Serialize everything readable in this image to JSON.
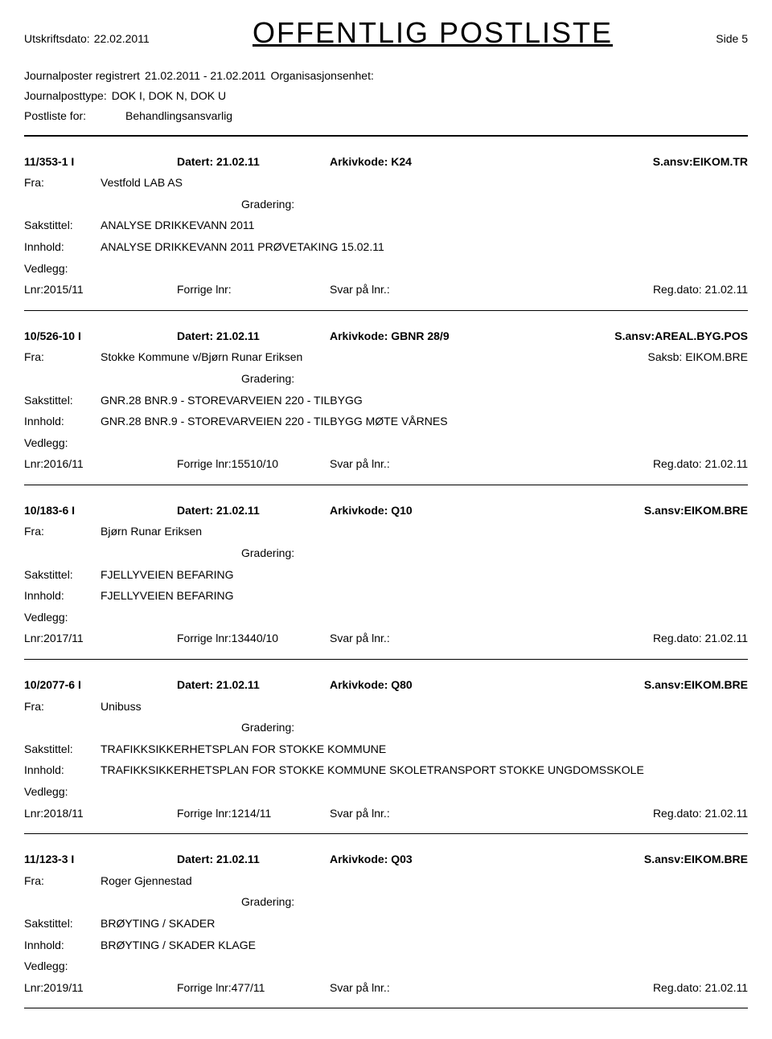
{
  "header": {
    "utskriftsdato_label": "Utskriftsdato:",
    "utskriftsdato_value": "22.02.2011",
    "main_title": "OFFENTLIG POSTLISTE",
    "side_label": "Side 5"
  },
  "subheader": {
    "line1_label": "Journalposter registrert",
    "line1_dates": "21.02.2011 - 21.02.2011",
    "line1_org": "Organisasjonsenhet:",
    "line2_label": "Journalposttype:",
    "line2_value": "DOK I, DOK N, DOK U",
    "line3_label": "Postliste for:",
    "line3_value": "Behandlingsansvarlig"
  },
  "labels": {
    "datert": "Datert:",
    "arkivkode": "Arkivkode:",
    "sansv": "S.ansv:",
    "fra": "Fra:",
    "saksb": "Saksb:",
    "gradering": "Gradering:",
    "sakstittel": "Sakstittel:",
    "innhold": "Innhold:",
    "vedlegg": "Vedlegg:",
    "lnr": "Lnr:",
    "forrige_lnr": "Forrige lnr:",
    "svar_pa_lnr": "Svar på lnr.:",
    "reg_dato": "Reg.dato:"
  },
  "entries": [
    {
      "id": "11/353-1 I",
      "datert": "21.02.11",
      "arkivkode": "K24",
      "sansv": "EIKOM.TR",
      "fra": "Vestfold LAB AS",
      "saksb": "",
      "sakstittel": "ANALYSE DRIKKEVANN 2011",
      "innhold": "ANALYSE DRIKKEVANN 2011  PRØVETAKING 15.02.11",
      "lnr": "2015/11",
      "forrige_lnr": "",
      "reg_dato": "21.02.11"
    },
    {
      "id": "10/526-10 I",
      "datert": "21.02.11",
      "arkivkode": "GBNR 28/9",
      "sansv": "AREAL.BYG.POS",
      "fra": "Stokke Kommune v/Bjørn Runar Eriksen",
      "saksb": "EIKOM.BRE",
      "sakstittel": "GNR.28 BNR.9 - STOREVARVEIEN 220 - TILBYGG",
      "innhold": "GNR.28 BNR.9 - STOREVARVEIEN 220 - TILBYGG  MØTE VÅRNES",
      "lnr": "2016/11",
      "forrige_lnr": "15510/10",
      "reg_dato": "21.02.11"
    },
    {
      "id": "10/183-6 I",
      "datert": "21.02.11",
      "arkivkode": "Q10",
      "sansv": "EIKOM.BRE",
      "fra": "Bjørn Runar Eriksen",
      "saksb": "",
      "sakstittel": "FJELLYVEIEN BEFARING",
      "innhold": "FJELLYVEIEN BEFARING",
      "lnr": "2017/11",
      "forrige_lnr": "13440/10",
      "reg_dato": "21.02.11"
    },
    {
      "id": "10/2077-6 I",
      "datert": "21.02.11",
      "arkivkode": "Q80",
      "sansv": "EIKOM.BRE",
      "fra": "Unibuss",
      "saksb": "",
      "sakstittel": "TRAFIKKSIKKERHETSPLAN FOR STOKKE KOMMUNE",
      "innhold": "TRAFIKKSIKKERHETSPLAN FOR STOKKE KOMMUNE  SKOLETRANSPORT STOKKE UNGDOMSSKOLE",
      "lnr": "2018/11",
      "forrige_lnr": "1214/11",
      "reg_dato": "21.02.11"
    },
    {
      "id": "11/123-3 I",
      "datert": "21.02.11",
      "arkivkode": "Q03",
      "sansv": "EIKOM.BRE",
      "fra": "Roger Gjennestad",
      "saksb": "",
      "sakstittel": "BRØYTING / SKADER",
      "innhold": "BRØYTING / SKADER  KLAGE",
      "lnr": "2019/11",
      "forrige_lnr": "477/11",
      "reg_dato": "21.02.11"
    }
  ]
}
